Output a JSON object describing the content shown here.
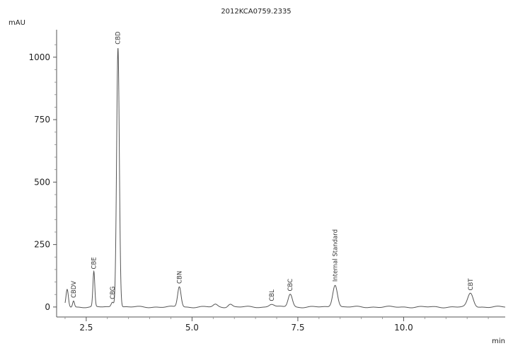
{
  "chart_data": {
    "type": "line",
    "title": "2012KCA0759.2335",
    "xlabel": "min",
    "ylabel": "mAU",
    "xlim": [
      1.8,
      12.4
    ],
    "ylim": [
      -40,
      1110
    ],
    "x_ticks": [
      {
        "value": 2.5,
        "label": "2.5"
      },
      {
        "value": 5.0,
        "label": "5.0"
      },
      {
        "value": 7.5,
        "label": "7.5"
      },
      {
        "value": 10.0,
        "label": "10.0"
      }
    ],
    "y_ticks": [
      {
        "value": 0,
        "label": "0"
      },
      {
        "value": 250,
        "label": "250"
      },
      {
        "value": 500,
        "label": "500"
      },
      {
        "value": 750,
        "label": "750"
      },
      {
        "value": 1000,
        "label": "1000"
      }
    ],
    "grid": false,
    "line_color": "#555555",
    "peaks": [
      {
        "name": "",
        "rt": 2.05,
        "height": 70,
        "width": 0.028
      },
      {
        "name": "CBDV",
        "rt": 2.2,
        "height": 25,
        "width": 0.022
      },
      {
        "name": "CBE",
        "rt": 2.68,
        "height": 140,
        "width": 0.022
      },
      {
        "name": "CBG",
        "rt": 3.12,
        "height": 20,
        "width": 0.03
      },
      {
        "name": "CBD",
        "rt": 3.25,
        "height": 1040,
        "width": 0.032
      },
      {
        "name": "CBN",
        "rt": 4.7,
        "height": 82,
        "width": 0.04
      },
      {
        "name": "",
        "rt": 5.55,
        "height": 10,
        "width": 0.05
      },
      {
        "name": "",
        "rt": 5.9,
        "height": 12,
        "width": 0.05
      },
      {
        "name": "CBL",
        "rt": 6.88,
        "height": 12,
        "width": 0.06
      },
      {
        "name": "CBC",
        "rt": 7.32,
        "height": 52,
        "width": 0.05
      },
      {
        "name": "Internal Standard",
        "rt": 8.38,
        "height": 90,
        "width": 0.055
      },
      {
        "name": "CBT",
        "rt": 11.58,
        "height": 55,
        "width": 0.065
      }
    ]
  }
}
